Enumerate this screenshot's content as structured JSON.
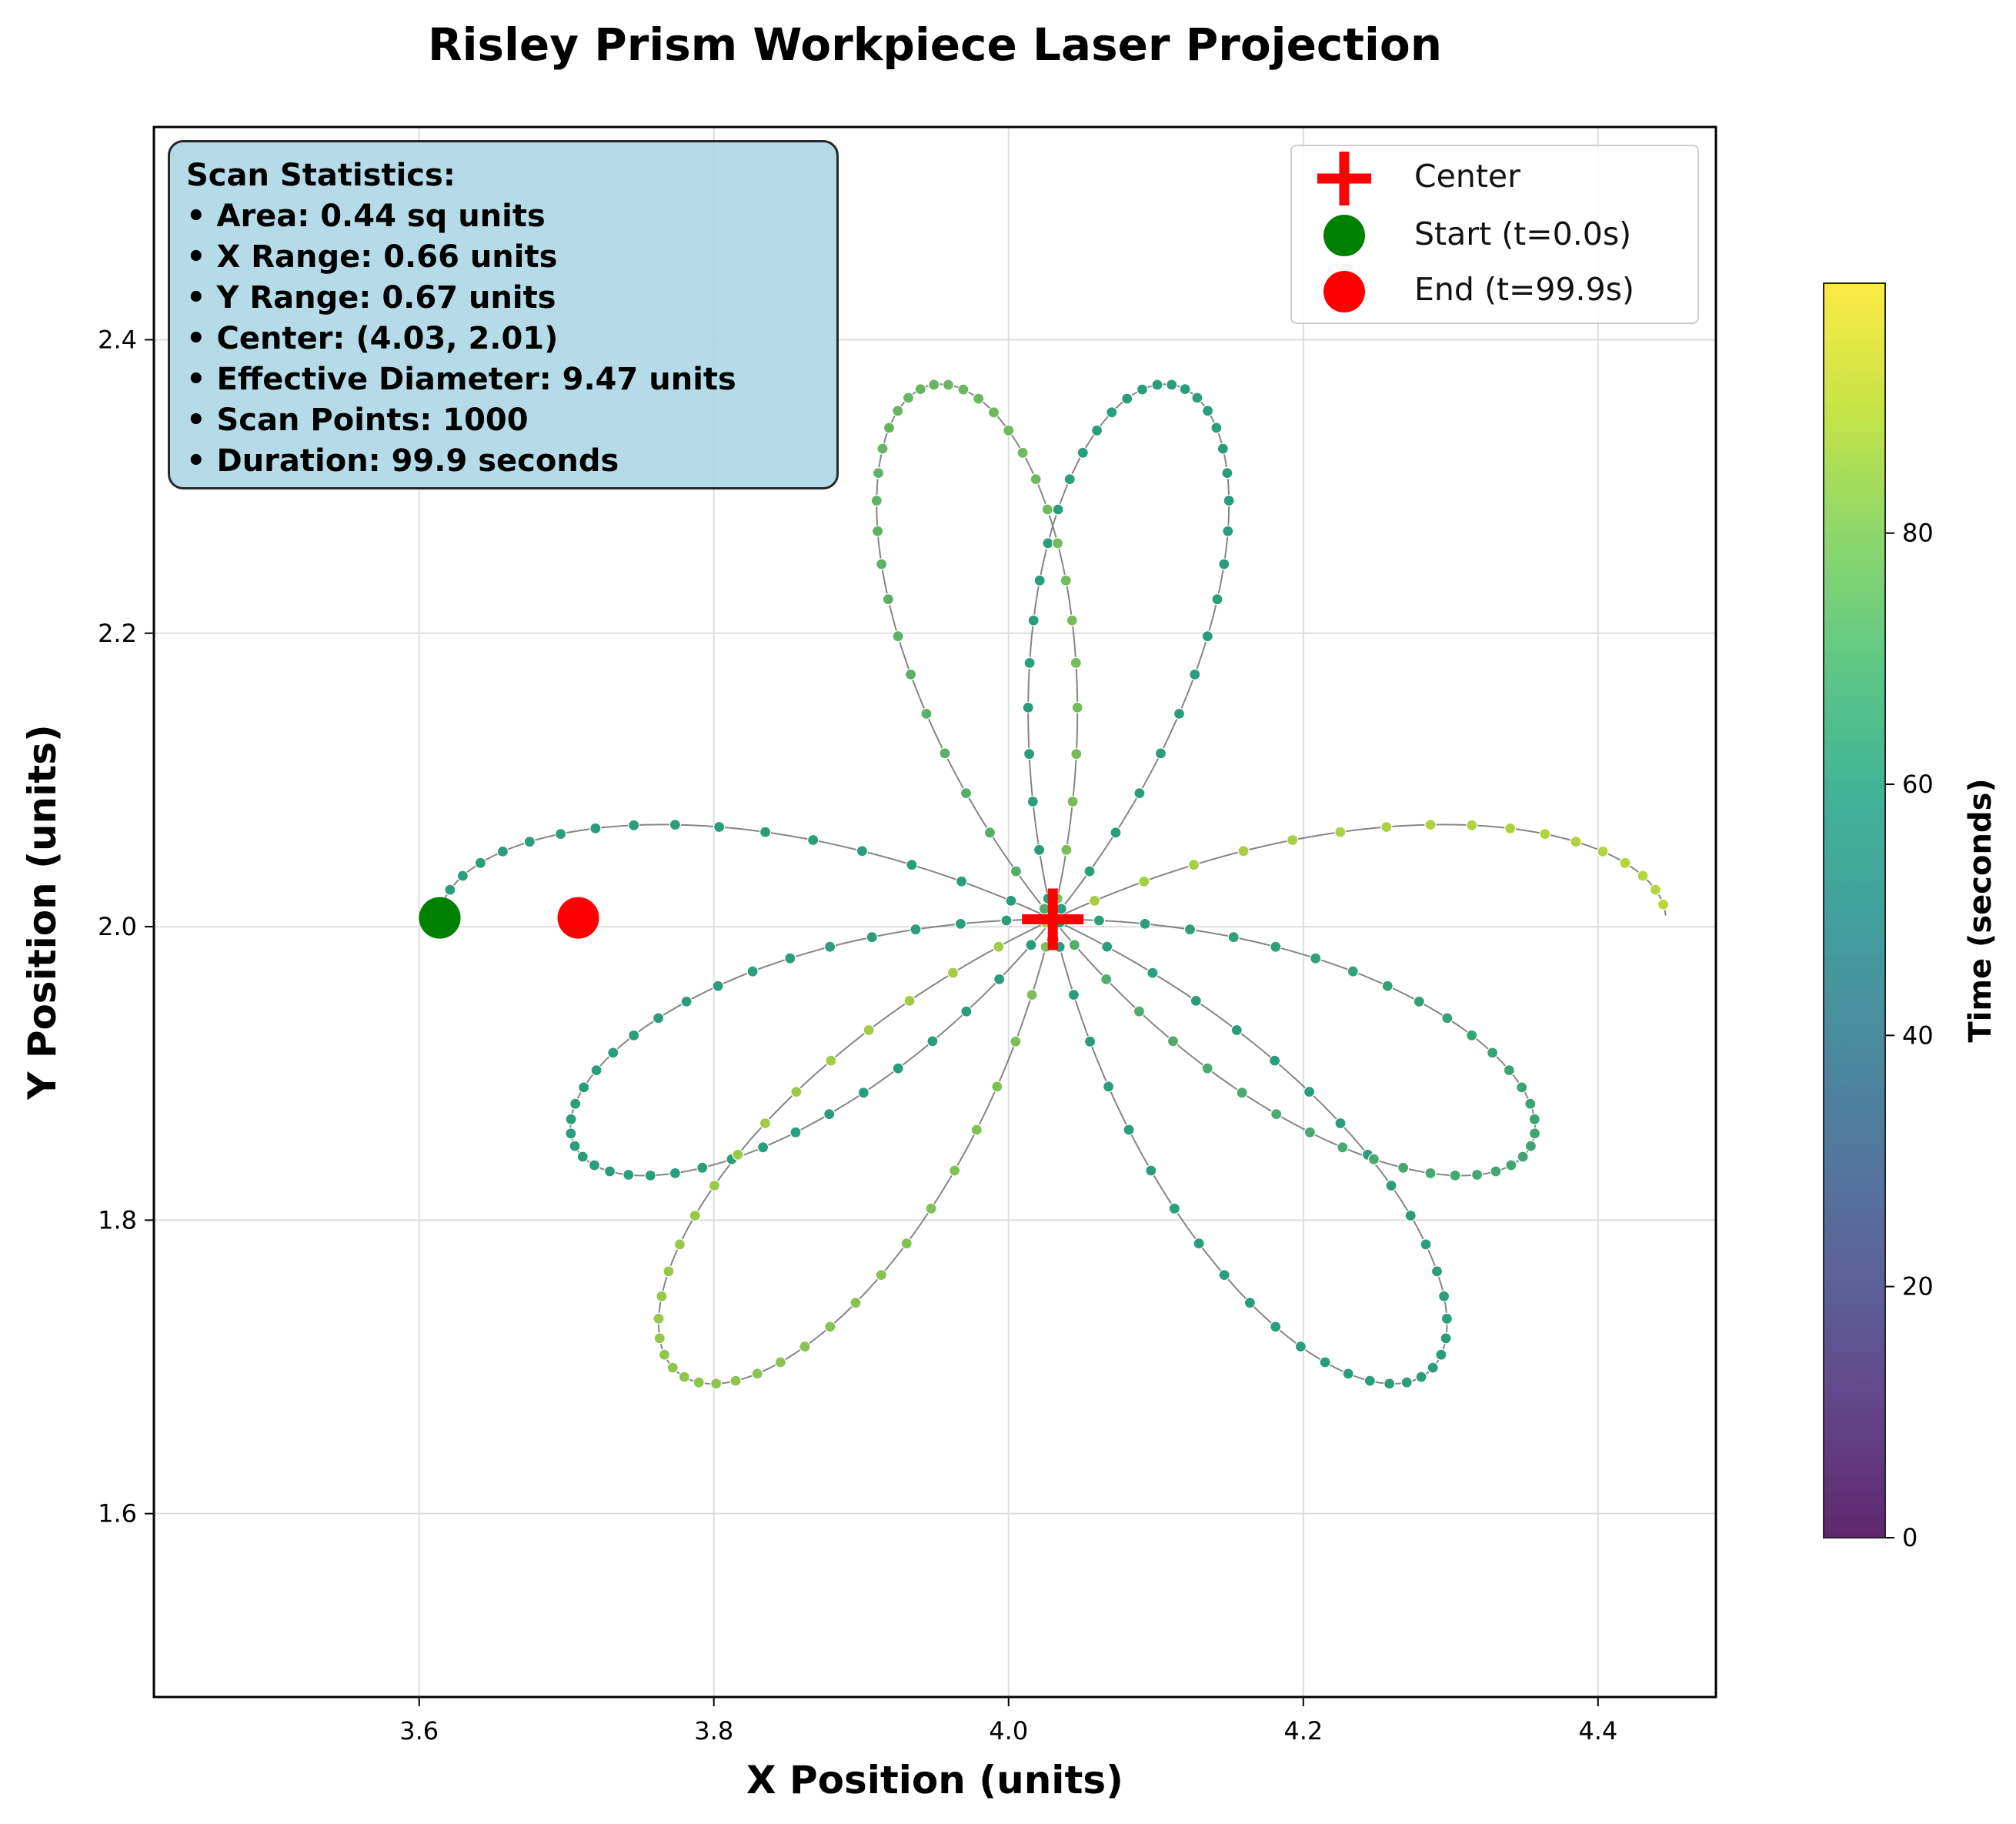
{
  "chart_data": {
    "type": "scatter",
    "title": "Risley Prism Workpiece Laser Projection",
    "xlabel": "X Position (units)",
    "ylabel": "Y Position (units)",
    "xlim": [
      3.42,
      4.48
    ],
    "ylim": [
      1.475,
      2.545
    ],
    "xticks": [
      3.6,
      3.8,
      4.0,
      4.2,
      4.4
    ],
    "xtick_labels": [
      "3.6",
      "3.8",
      "4.0",
      "4.2",
      "4.4"
    ],
    "yticks": [
      1.6,
      1.8,
      2.0,
      2.2,
      2.4
    ],
    "ytick_labels": [
      "1.6",
      "1.8",
      "2.0",
      "2.2",
      "2.4"
    ],
    "grid": true,
    "legend_position": "top-right",
    "legend": [
      {
        "label": "Center",
        "marker": "plus",
        "color": "#ff0000"
      },
      {
        "label": "Start (t=0.0s)",
        "marker": "circle",
        "color": "#008000"
      },
      {
        "label": "End (t=99.9s)",
        "marker": "circle",
        "color": "#ff0000"
      }
    ],
    "center": {
      "x": 4.03,
      "y": 2.005
    },
    "start_point": {
      "x": 3.614,
      "y": 2.006
    },
    "end_point": {
      "x": 3.708,
      "y": 2.006
    },
    "colorbar": {
      "label": "Time (seconds)",
      "range": [
        0,
        99.9
      ],
      "ticks": [
        0,
        20,
        40,
        60,
        80
      ],
      "tick_labels": [
        "0",
        "20",
        "40",
        "60",
        "80"
      ],
      "colormap": "viridis"
    },
    "trajectory": {
      "description_source": "rose pattern approximated from the plotted scan path",
      "num_points": 1000,
      "duration_seconds": 99.9,
      "point_color_mid": "#2a9d7c",
      "point_color_late": "#b9d63a",
      "path_color": "#666666"
    }
  },
  "stats": {
    "title": "Scan Statistics:",
    "lines": [
      "• Area: 0.44 sq units",
      "• X Range: 0.66 units",
      "• Y Range: 0.67 units",
      "• Center: (4.03, 2.01)",
      "• Effective Diameter: 9.47 units",
      "• Scan Points: 1000",
      "• Duration: 99.9 seconds"
    ]
  }
}
